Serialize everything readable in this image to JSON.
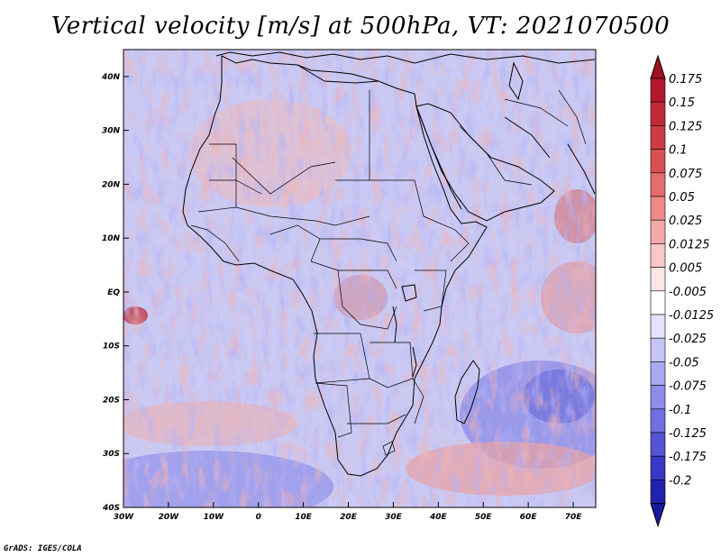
{
  "title": "Vertical velocity [m/s] at 500hPa, VT: 2021070500",
  "credit": "GrADS: IGES/COLA",
  "map": {
    "lon_range": [
      -30,
      75
    ],
    "lat_range": [
      -40,
      45
    ],
    "lat_ticks": [
      {
        "value": 40,
        "label": "40N"
      },
      {
        "value": 30,
        "label": "30N"
      },
      {
        "value": 20,
        "label": "20N"
      },
      {
        "value": 10,
        "label": "10N"
      },
      {
        "value": 0,
        "label": "EQ"
      },
      {
        "value": -10,
        "label": "10S"
      },
      {
        "value": -20,
        "label": "20S"
      },
      {
        "value": -30,
        "label": "30S"
      },
      {
        "value": -40,
        "label": "40S"
      }
    ],
    "lon_ticks": [
      {
        "value": -30,
        "label": "30W"
      },
      {
        "value": -20,
        "label": "20W"
      },
      {
        "value": -10,
        "label": "10W"
      },
      {
        "value": 0,
        "label": "0"
      },
      {
        "value": 10,
        "label": "10E"
      },
      {
        "value": 20,
        "label": "20E"
      },
      {
        "value": 30,
        "label": "30E"
      },
      {
        "value": 40,
        "label": "40E"
      },
      {
        "value": 50,
        "label": "50E"
      },
      {
        "value": 60,
        "label": "60E"
      },
      {
        "value": 70,
        "label": "70E"
      }
    ]
  },
  "colorbar": {
    "levels": [
      {
        "label": "0.175",
        "color": "#b2182b"
      },
      {
        "label": "0.15",
        "color": "#c02a38"
      },
      {
        "label": "0.125",
        "color": "#cc3c44"
      },
      {
        "label": "0.1",
        "color": "#d85052"
      },
      {
        "label": "0.075",
        "color": "#e36c6c"
      },
      {
        "label": "0.05",
        "color": "#ec8a8a"
      },
      {
        "label": "0.025",
        "color": "#f3a9a9"
      },
      {
        "label": "0.0125",
        "color": "#f8c8c8"
      },
      {
        "label": "0.005",
        "color": "#fce5e5"
      },
      {
        "label": "-0.005",
        "color": "#ffffff"
      },
      {
        "label": "-0.0125",
        "color": "#e2e2fb"
      },
      {
        "label": "-0.025",
        "color": "#c6c6f6"
      },
      {
        "label": "-0.05",
        "color": "#a9a9f0"
      },
      {
        "label": "-0.075",
        "color": "#8d8de9"
      },
      {
        "label": "-0.1",
        "color": "#7070e0"
      },
      {
        "label": "-0.125",
        "color": "#5454d4"
      },
      {
        "label": "-0.175",
        "color": "#3838c4"
      },
      {
        "label": "-0.2",
        "color": "#2222b0"
      }
    ],
    "top_color": "#a01020",
    "bottom_color": "#1a1aa0"
  }
}
